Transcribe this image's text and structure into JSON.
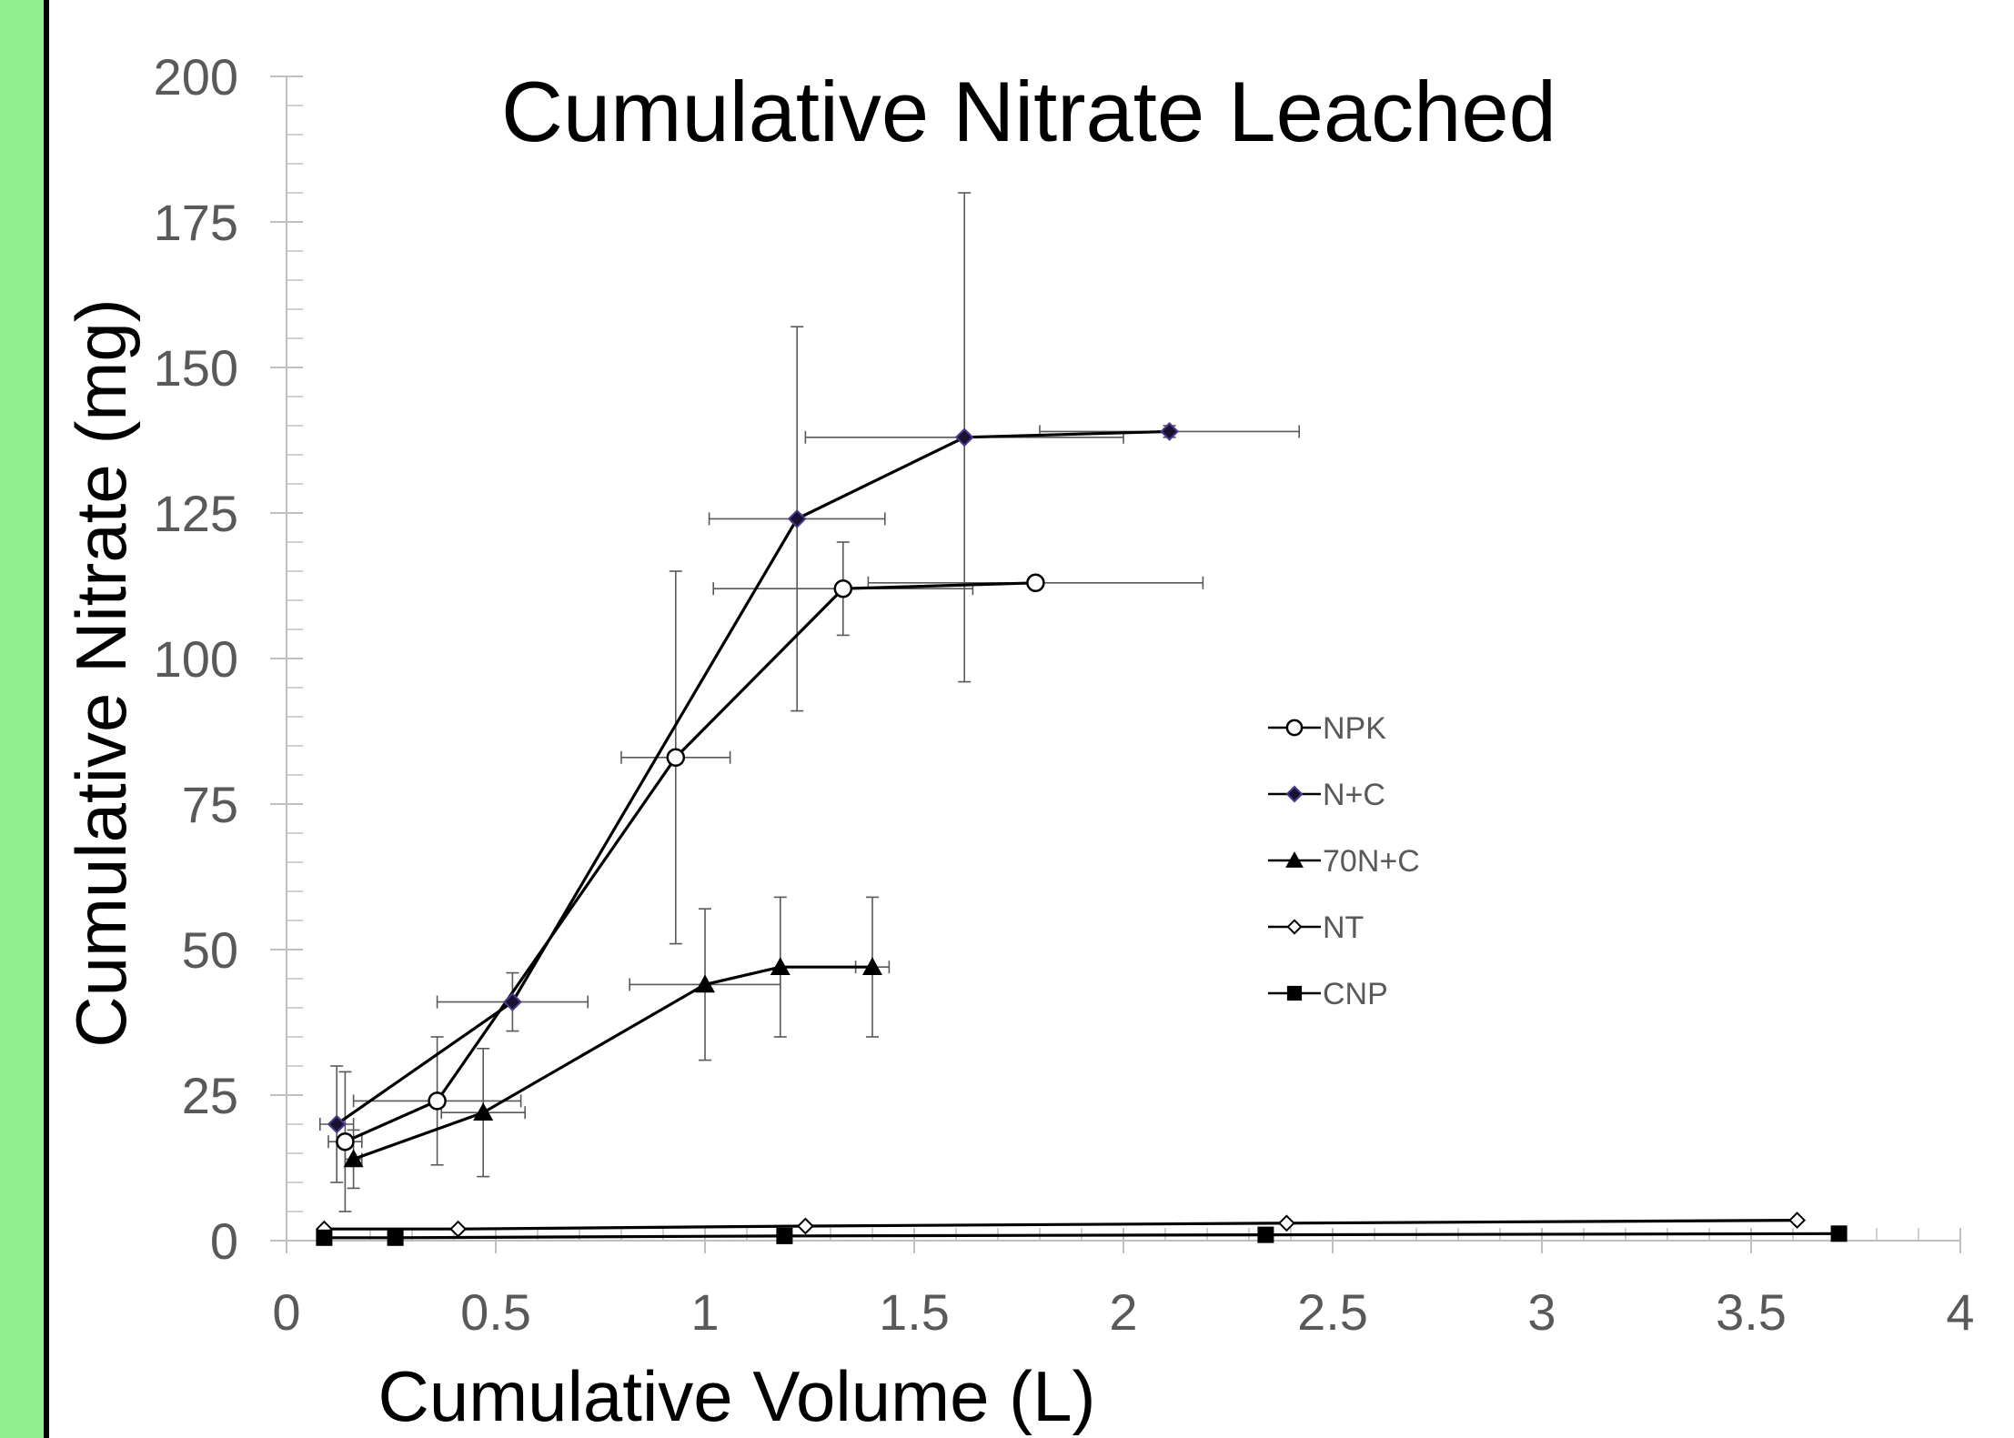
{
  "colors": {
    "left_bar": "#90ee90",
    "axis": "#bfbfbf",
    "tick_text": "#595959",
    "series_line": "#000000",
    "error_bar": "#595959",
    "nc_marker": "#1a1030",
    "nc_marker_edge": "#4b3a8f"
  },
  "chart_data": {
    "type": "scatter",
    "title": "Cumulative Nitrate Leached",
    "xlabel": "Cumulative Volume (L)",
    "ylabel": "Cumulative Nitrate (mg)",
    "xlim": [
      0,
      4
    ],
    "ylim": [
      0,
      200
    ],
    "xticks": [
      0,
      0.5,
      1,
      1.5,
      2,
      2.5,
      3,
      3.5,
      4
    ],
    "yticks": [
      0,
      25,
      50,
      75,
      100,
      125,
      150,
      175,
      200
    ],
    "xtick_labels": [
      "0",
      "0.5",
      "1",
      "1.5",
      "2",
      "2.5",
      "3",
      "3.5",
      "4"
    ],
    "ytick_labels": [
      "0",
      "25",
      "50",
      "75",
      "100",
      "125",
      "150",
      "175",
      "200"
    ],
    "grid": false,
    "legend_position": "center-right",
    "series": [
      {
        "name": "NPK",
        "marker": "circle-open",
        "x": [
          0.14,
          0.36,
          0.93,
          1.33,
          1.79
        ],
        "y": [
          17,
          24,
          83,
          112,
          113
        ],
        "yerr": [
          12,
          11,
          32,
          8,
          0
        ],
        "xerr": [
          0.04,
          0.2,
          0.13,
          0.31,
          0.4
        ]
      },
      {
        "name": "N+C",
        "marker": "diamond-filled",
        "x": [
          0.12,
          0.54,
          1.22,
          1.62,
          2.11
        ],
        "y": [
          20,
          41,
          124,
          138,
          139
        ],
        "yerr": [
          10,
          5,
          33,
          42,
          1
        ],
        "xerr": [
          0.04,
          0.18,
          0.21,
          0.38,
          0.31
        ]
      },
      {
        "name": "70N+C",
        "marker": "triangle-filled",
        "x": [
          0.16,
          0.47,
          1.0,
          1.18,
          1.4
        ],
        "y": [
          14,
          22,
          44,
          47,
          47
        ],
        "yerr": [
          5,
          11,
          13,
          12,
          12
        ],
        "xerr": [
          0.02,
          0.1,
          0.18,
          0,
          0.04
        ]
      },
      {
        "name": "NT",
        "marker": "diamond-open",
        "x": [
          0.09,
          0.41,
          1.24,
          2.39,
          3.61
        ],
        "y": [
          2,
          2,
          2.5,
          3,
          3.5
        ],
        "yerr": [
          0,
          0,
          0,
          0,
          0
        ],
        "xerr": [
          0,
          0,
          0,
          0,
          0
        ]
      },
      {
        "name": "CNP",
        "marker": "square-filled",
        "x": [
          0.09,
          0.26,
          1.19,
          2.34,
          3.71
        ],
        "y": [
          0.5,
          0.5,
          0.8,
          1,
          1.2
        ],
        "yerr": [
          0,
          0,
          0,
          0,
          0
        ],
        "xerr": [
          0,
          0,
          0,
          0,
          0
        ]
      }
    ]
  }
}
